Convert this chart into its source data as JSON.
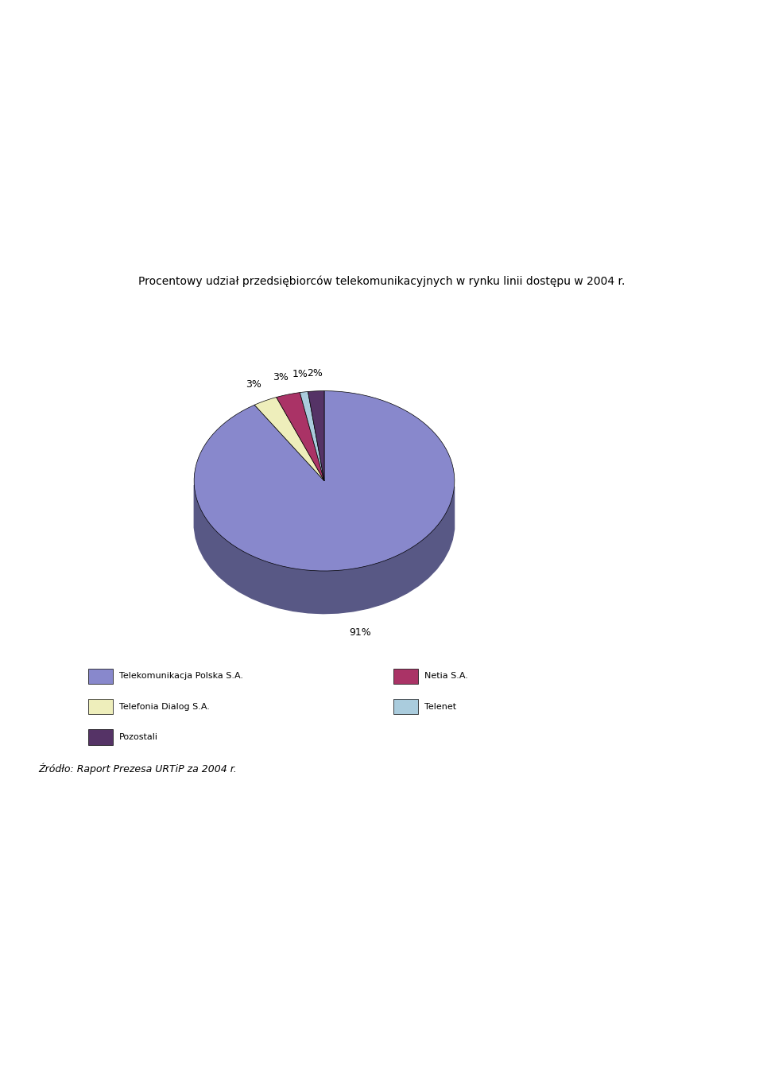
{
  "title": "Procentowy udział przedsiębiorców telekomunikacyjnych w rynku linii dostępu w 2004 r.",
  "slices": [
    {
      "label": "Telekomunikacja Polska S.A.",
      "value": 91,
      "color": "#8888cc",
      "pct_label": "91%"
    },
    {
      "label": "Telefonia Dialog S.A.",
      "value": 3,
      "color": "#eeeebb",
      "pct_label": "3%"
    },
    {
      "label": "Netia S.A.",
      "value": 3,
      "color": "#aa3366",
      "pct_label": "3%"
    },
    {
      "label": "Telenet",
      "value": 1,
      "color": "#aaccdd",
      "pct_label": "1%"
    },
    {
      "label": "Pozostali",
      "value": 2,
      "color": "#553366",
      "pct_label": "2%"
    }
  ],
  "source_text": "Źródło: Raport Prezesa URTiP za 2004 r.",
  "bg_color": "#ffffff",
  "side_color_tp": "#5555aa",
  "side_color_others": "#333366"
}
